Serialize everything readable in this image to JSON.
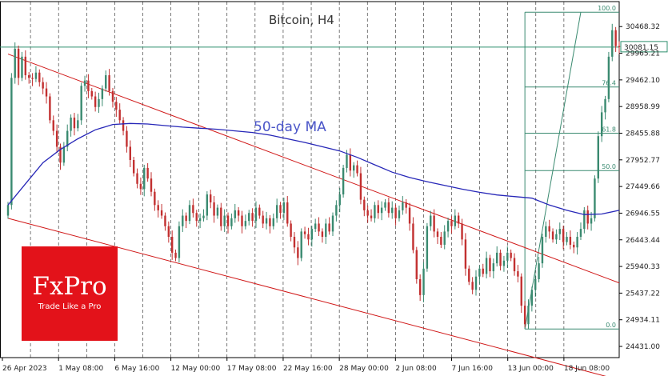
{
  "chart_data": {
    "type": "candlestick",
    "title": "Bitcoin, H4",
    "annotation": "50-day MA",
    "current_price": "30081.15",
    "y_ticks": [
      "30468.32",
      "29965.21",
      "29462.10",
      "28958.99",
      "28455.88",
      "27952.77",
      "27449.66",
      "26946.55",
      "26443.44",
      "25940.33",
      "25437.22",
      "24934.11",
      "24431.00"
    ],
    "ylim": [
      24220,
      30940
    ],
    "x_ticks": [
      "26 Apr 2023",
      "1 May 08:00",
      "6 May 16:00",
      "12 May 00:00",
      "17 May 08:00",
      "22 May 16:00",
      "28 May 00:00",
      "2 Jun 08:00",
      "7 Jun 16:00",
      "13 Jun 00:00",
      "18 Jun 08:00"
    ],
    "fibonacci": {
      "levels": [
        "100.0",
        "76.4",
        "61.8",
        "50.0",
        "0.0"
      ],
      "low": 24760,
      "high": 30740
    },
    "close_path": [
      [
        0,
        27100
      ],
      [
        1,
        29500
      ],
      [
        2,
        30050
      ],
      [
        3,
        29500
      ],
      [
        4,
        29900
      ],
      [
        5,
        29550
      ],
      [
        6,
        29500
      ],
      [
        7,
        29480
      ],
      [
        8,
        29600
      ],
      [
        9,
        29420
      ],
      [
        10,
        29300
      ],
      [
        11,
        29150
      ],
      [
        12,
        28700
      ],
      [
        13,
        28500
      ],
      [
        14,
        28200
      ],
      [
        15,
        27900
      ],
      [
        16,
        28200
      ],
      [
        17,
        28500
      ],
      [
        18,
        28750
      ],
      [
        19,
        28550
      ],
      [
        20,
        28700
      ],
      [
        21,
        29350
      ],
      [
        22,
        29450
      ],
      [
        23,
        29250
      ],
      [
        24,
        29150
      ],
      [
        25,
        28950
      ],
      [
        26,
        29100
      ],
      [
        27,
        29300
      ],
      [
        28,
        29550
      ],
      [
        29,
        29250
      ],
      [
        30,
        29050
      ],
      [
        31,
        28900
      ],
      [
        32,
        28700
      ],
      [
        33,
        28500
      ],
      [
        34,
        28200
      ],
      [
        35,
        27950
      ],
      [
        36,
        27700
      ],
      [
        37,
        27500
      ],
      [
        38,
        27400
      ],
      [
        39,
        27800
      ],
      [
        40,
        27600
      ],
      [
        41,
        27350
      ],
      [
        42,
        27100
      ],
      [
        43,
        27000
      ],
      [
        44,
        26900
      ],
      [
        45,
        26700
      ],
      [
        46,
        26500
      ],
      [
        47,
        26200
      ],
      [
        48,
        26100
      ],
      [
        49,
        26700
      ],
      [
        50,
        26900
      ],
      [
        51,
        26800
      ],
      [
        52,
        27100
      ],
      [
        53,
        26950
      ],
      [
        54,
        26800
      ],
      [
        55,
        26850
      ],
      [
        56,
        26900
      ],
      [
        57,
        27300
      ],
      [
        58,
        27150
      ],
      [
        59,
        26900
      ],
      [
        60,
        27050
      ],
      [
        61,
        26700
      ],
      [
        62,
        26900
      ],
      [
        63,
        26700
      ],
      [
        64,
        26850
      ],
      [
        65,
        27000
      ],
      [
        66,
        26900
      ],
      [
        67,
        26700
      ],
      [
        68,
        26800
      ],
      [
        69,
        26950
      ],
      [
        70,
        26800
      ],
      [
        71,
        27050
      ],
      [
        72,
        26900
      ],
      [
        73,
        26750
      ],
      [
        74,
        26850
      ],
      [
        75,
        26700
      ],
      [
        76,
        26850
      ],
      [
        77,
        27100
      ],
      [
        78,
        26950
      ],
      [
        79,
        27150
      ],
      [
        80,
        26750
      ],
      [
        81,
        26500
      ],
      [
        82,
        26300
      ],
      [
        83,
        26100
      ],
      [
        84,
        26600
      ],
      [
        85,
        26550
      ],
      [
        86,
        26450
      ],
      [
        87,
        26650
      ],
      [
        88,
        26750
      ],
      [
        89,
        26600
      ],
      [
        90,
        26500
      ],
      [
        91,
        26750
      ],
      [
        92,
        26600
      ],
      [
        93,
        26900
      ],
      [
        94,
        27100
      ],
      [
        95,
        27300
      ],
      [
        96,
        27800
      ],
      [
        97,
        28050
      ],
      [
        98,
        27750
      ],
      [
        99,
        27850
      ],
      [
        100,
        27700
      ],
      [
        101,
        27200
      ],
      [
        102,
        27000
      ],
      [
        103,
        26900
      ],
      [
        104,
        26850
      ],
      [
        105,
        27100
      ],
      [
        106,
        26950
      ],
      [
        107,
        27050
      ],
      [
        108,
        27150
      ],
      [
        109,
        26950
      ],
      [
        110,
        27050
      ],
      [
        111,
        26850
      ],
      [
        112,
        27000
      ],
      [
        113,
        27150
      ],
      [
        114,
        27050
      ],
      [
        115,
        26750
      ],
      [
        116,
        26250
      ],
      [
        117,
        25700
      ],
      [
        118,
        25400
      ],
      [
        119,
        25900
      ],
      [
        120,
        26700
      ],
      [
        121,
        26900
      ],
      [
        122,
        26600
      ],
      [
        123,
        26500
      ],
      [
        124,
        26350
      ],
      [
        125,
        26600
      ],
      [
        126,
        26800
      ],
      [
        127,
        26700
      ],
      [
        128,
        26900
      ],
      [
        129,
        26750
      ],
      [
        130,
        26450
      ],
      [
        131,
        25900
      ],
      [
        132,
        25650
      ],
      [
        133,
        25500
      ],
      [
        134,
        25750
      ],
      [
        135,
        25900
      ],
      [
        136,
        25800
      ],
      [
        137,
        26100
      ],
      [
        138,
        25850
      ],
      [
        139,
        26000
      ],
      [
        140,
        26200
      ],
      [
        141,
        25950
      ],
      [
        142,
        26050
      ],
      [
        143,
        26200
      ],
      [
        144,
        26100
      ],
      [
        145,
        25850
      ],
      [
        146,
        25750
      ],
      [
        147,
        25200
      ],
      [
        148,
        24850
      ],
      [
        149,
        25200
      ],
      [
        150,
        25500
      ],
      [
        151,
        25700
      ],
      [
        152,
        26000
      ],
      [
        153,
        26500
      ],
      [
        154,
        26700
      ],
      [
        155,
        26600
      ],
      [
        156,
        26450
      ],
      [
        157,
        26550
      ],
      [
        158,
        26650
      ],
      [
        159,
        26400
      ],
      [
        160,
        26500
      ],
      [
        161,
        26350
      ],
      [
        162,
        26300
      ],
      [
        163,
        26500
      ],
      [
        164,
        26650
      ],
      [
        165,
        27000
      ],
      [
        166,
        26750
      ],
      [
        167,
        26850
      ],
      [
        168,
        27600
      ],
      [
        169,
        28400
      ],
      [
        170,
        28850
      ],
      [
        171,
        29100
      ],
      [
        172,
        29900
      ],
      [
        173,
        30400
      ],
      [
        174,
        30100
      ],
      [
        175,
        30081
      ]
    ],
    "ma_50": [
      [
        0,
        27100
      ],
      [
        5,
        27500
      ],
      [
        10,
        27900
      ],
      [
        15,
        28150
      ],
      [
        20,
        28350
      ],
      [
        25,
        28520
      ],
      [
        30,
        28620
      ],
      [
        35,
        28640
      ],
      [
        40,
        28630
      ],
      [
        45,
        28600
      ],
      [
        50,
        28570
      ],
      [
        55,
        28550
      ],
      [
        60,
        28530
      ],
      [
        65,
        28500
      ],
      [
        70,
        28470
      ],
      [
        75,
        28420
      ],
      [
        80,
        28350
      ],
      [
        85,
        28280
      ],
      [
        90,
        28200
      ],
      [
        95,
        28120
      ],
      [
        100,
        28000
      ],
      [
        105,
        27860
      ],
      [
        110,
        27720
      ],
      [
        115,
        27620
      ],
      [
        120,
        27540
      ],
      [
        125,
        27470
      ],
      [
        130,
        27400
      ],
      [
        135,
        27340
      ],
      [
        140,
        27290
      ],
      [
        145,
        27260
      ],
      [
        150,
        27230
      ],
      [
        155,
        27100
      ],
      [
        160,
        27000
      ],
      [
        165,
        26920
      ],
      [
        170,
        26930
      ],
      [
        175,
        27000
      ]
    ],
    "channel": {
      "upper": [
        [
          0,
          29950
        ],
        [
          175,
          25630
        ]
      ],
      "lower": [
        [
          0,
          26850
        ],
        [
          175,
          23800
        ]
      ]
    },
    "grid": true,
    "legend": "none"
  },
  "branding": {
    "logo_text": "FxPro",
    "tagline": "Trade Like a Pro"
  },
  "colors": {
    "bull": "#3a8a70",
    "bear": "#c23030",
    "ma": "#2727b8",
    "channel": "#d01818",
    "fib": "#3a8a70",
    "price_line": "#2e8f6e",
    "brand": "#e3121a"
  }
}
